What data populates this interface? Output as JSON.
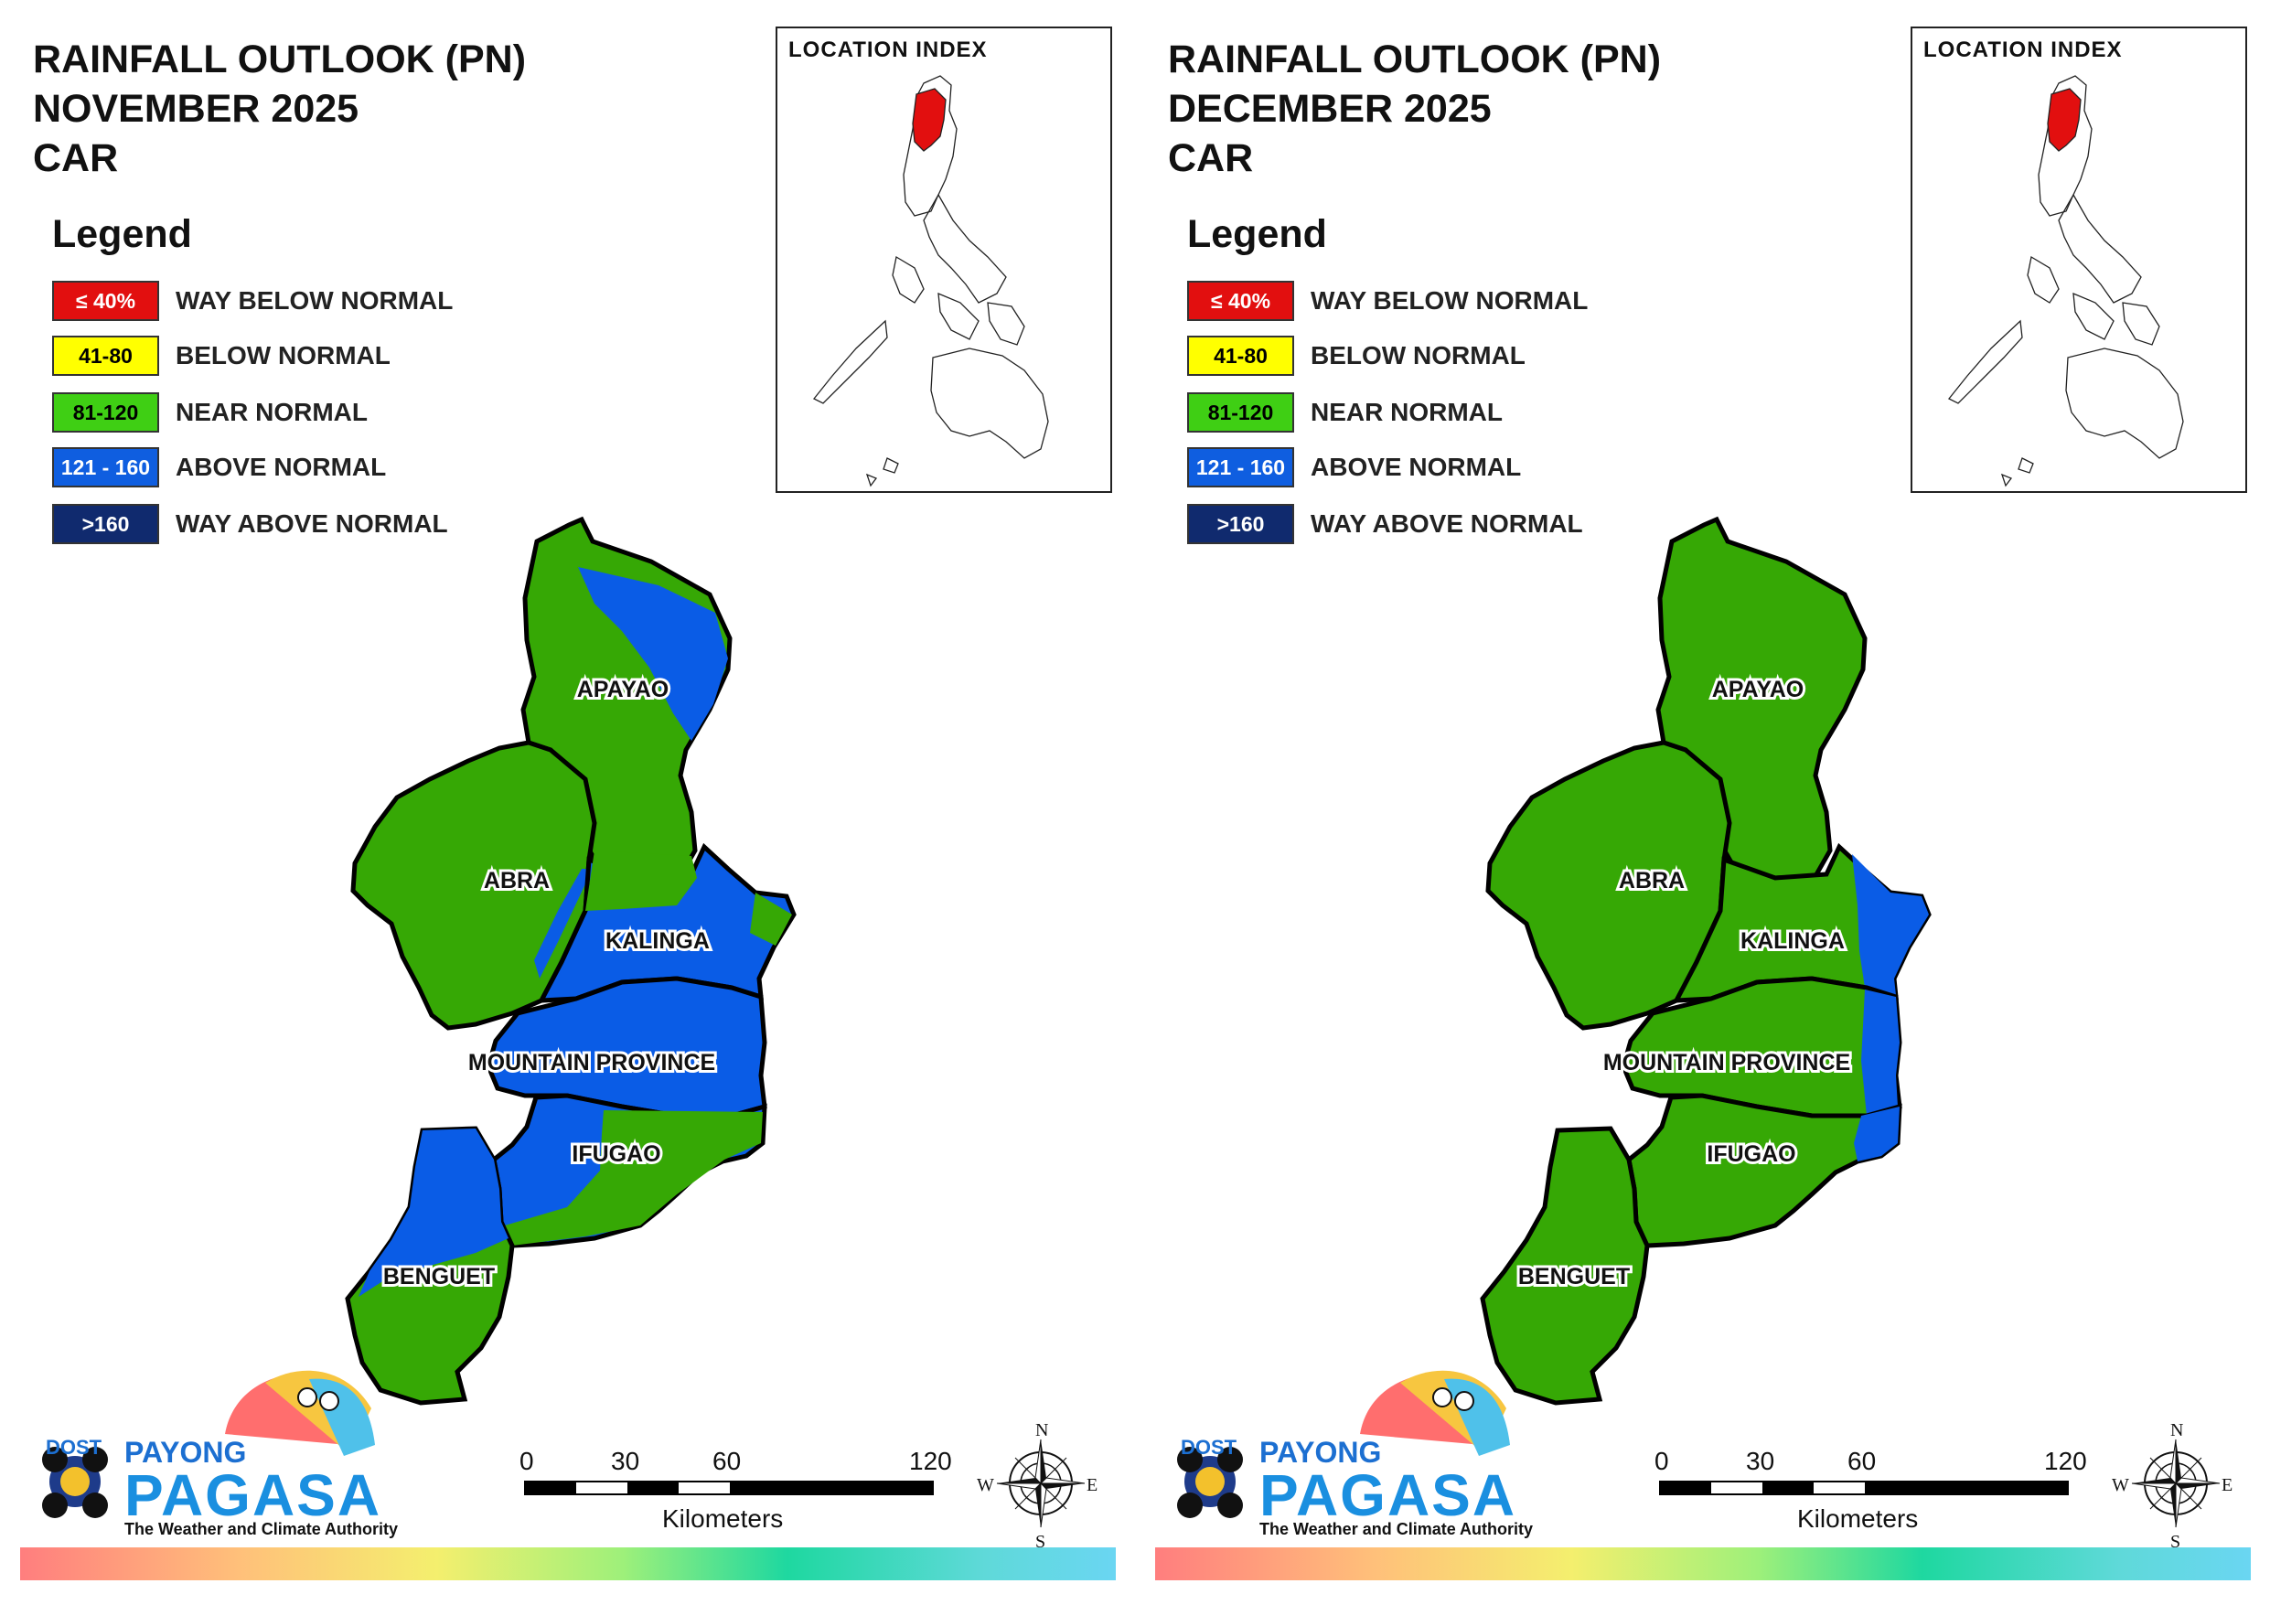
{
  "panels": [
    {
      "title_line1": "RAINFALL OUTLOOK (PN)",
      "title_line2": "NOVEMBER 2025",
      "title_line3": "CAR",
      "provinces": {
        "apayao": {
          "label": "APAYAO",
          "category": "NEAR NORMAL",
          "secondary": "ABOVE NORMAL"
        },
        "abra": {
          "label": "ABRA",
          "category": "NEAR NORMAL"
        },
        "kalinga": {
          "label": "KALINGA",
          "category": "ABOVE NORMAL",
          "secondary": "NEAR NORMAL"
        },
        "mountain_province": {
          "label": "MOUNTAIN PROVINCE",
          "category": "ABOVE NORMAL"
        },
        "ifugao": {
          "label": "IFUGAO",
          "category": "ABOVE NORMAL",
          "secondary": "NEAR NORMAL"
        },
        "benguet": {
          "label": "BENGUET",
          "category": "NEAR NORMAL",
          "secondary": "ABOVE NORMAL"
        }
      }
    },
    {
      "title_line1": "RAINFALL OUTLOOK (PN)",
      "title_line2": "DECEMBER 2025",
      "title_line3": "CAR",
      "provinces": {
        "apayao": {
          "label": "APAYAO",
          "category": "NEAR NORMAL"
        },
        "abra": {
          "label": "ABRA",
          "category": "NEAR NORMAL"
        },
        "kalinga": {
          "label": "KALINGA",
          "category": "NEAR NORMAL",
          "secondary": "ABOVE NORMAL"
        },
        "mountain_province": {
          "label": "MOUNTAIN PROVINCE",
          "category": "NEAR NORMAL",
          "secondary": "ABOVE NORMAL"
        },
        "ifugao": {
          "label": "IFUGAO",
          "category": "NEAR NORMAL",
          "secondary": "ABOVE NORMAL"
        },
        "benguet": {
          "label": "BENGUET",
          "category": "NEAR NORMAL"
        }
      }
    }
  ],
  "legend": {
    "title": "Legend",
    "items": [
      {
        "range": "≤ 40%",
        "label": "WAY BELOW NORMAL",
        "color": "#e20f0f",
        "text_color": "#ffffff"
      },
      {
        "range": "41-80",
        "label": "BELOW NORMAL",
        "color": "#ffff00",
        "text_color": "#000000"
      },
      {
        "range": "81-120",
        "label": "NEAR NORMAL",
        "color": "#3fcf14",
        "text_color": "#000000"
      },
      {
        "range": "121 - 160",
        "label": "ABOVE NORMAL",
        "color": "#0f5ee0",
        "text_color": "#ffffff"
      },
      {
        "range": ">160",
        "label": "WAY ABOVE NORMAL",
        "color": "#102a6e",
        "text_color": "#ffffff"
      }
    ]
  },
  "map_colors": {
    "near_normal": "#36a805",
    "above_normal": "#0a5ce6",
    "highlight_region": "#e20f0f"
  },
  "location_index": {
    "title": "LOCATION INDEX"
  },
  "scale_bar": {
    "ticks": [
      "0",
      "30",
      "60",
      "120"
    ],
    "unit": "Kilometers"
  },
  "compass": {
    "n": "N",
    "s": "S",
    "e": "E",
    "w": "W"
  },
  "logo": {
    "dost": "DOST",
    "payong": "PAYONG",
    "pagasa": "PAGASA",
    "tagline": "The Weather and Climate Authority"
  }
}
